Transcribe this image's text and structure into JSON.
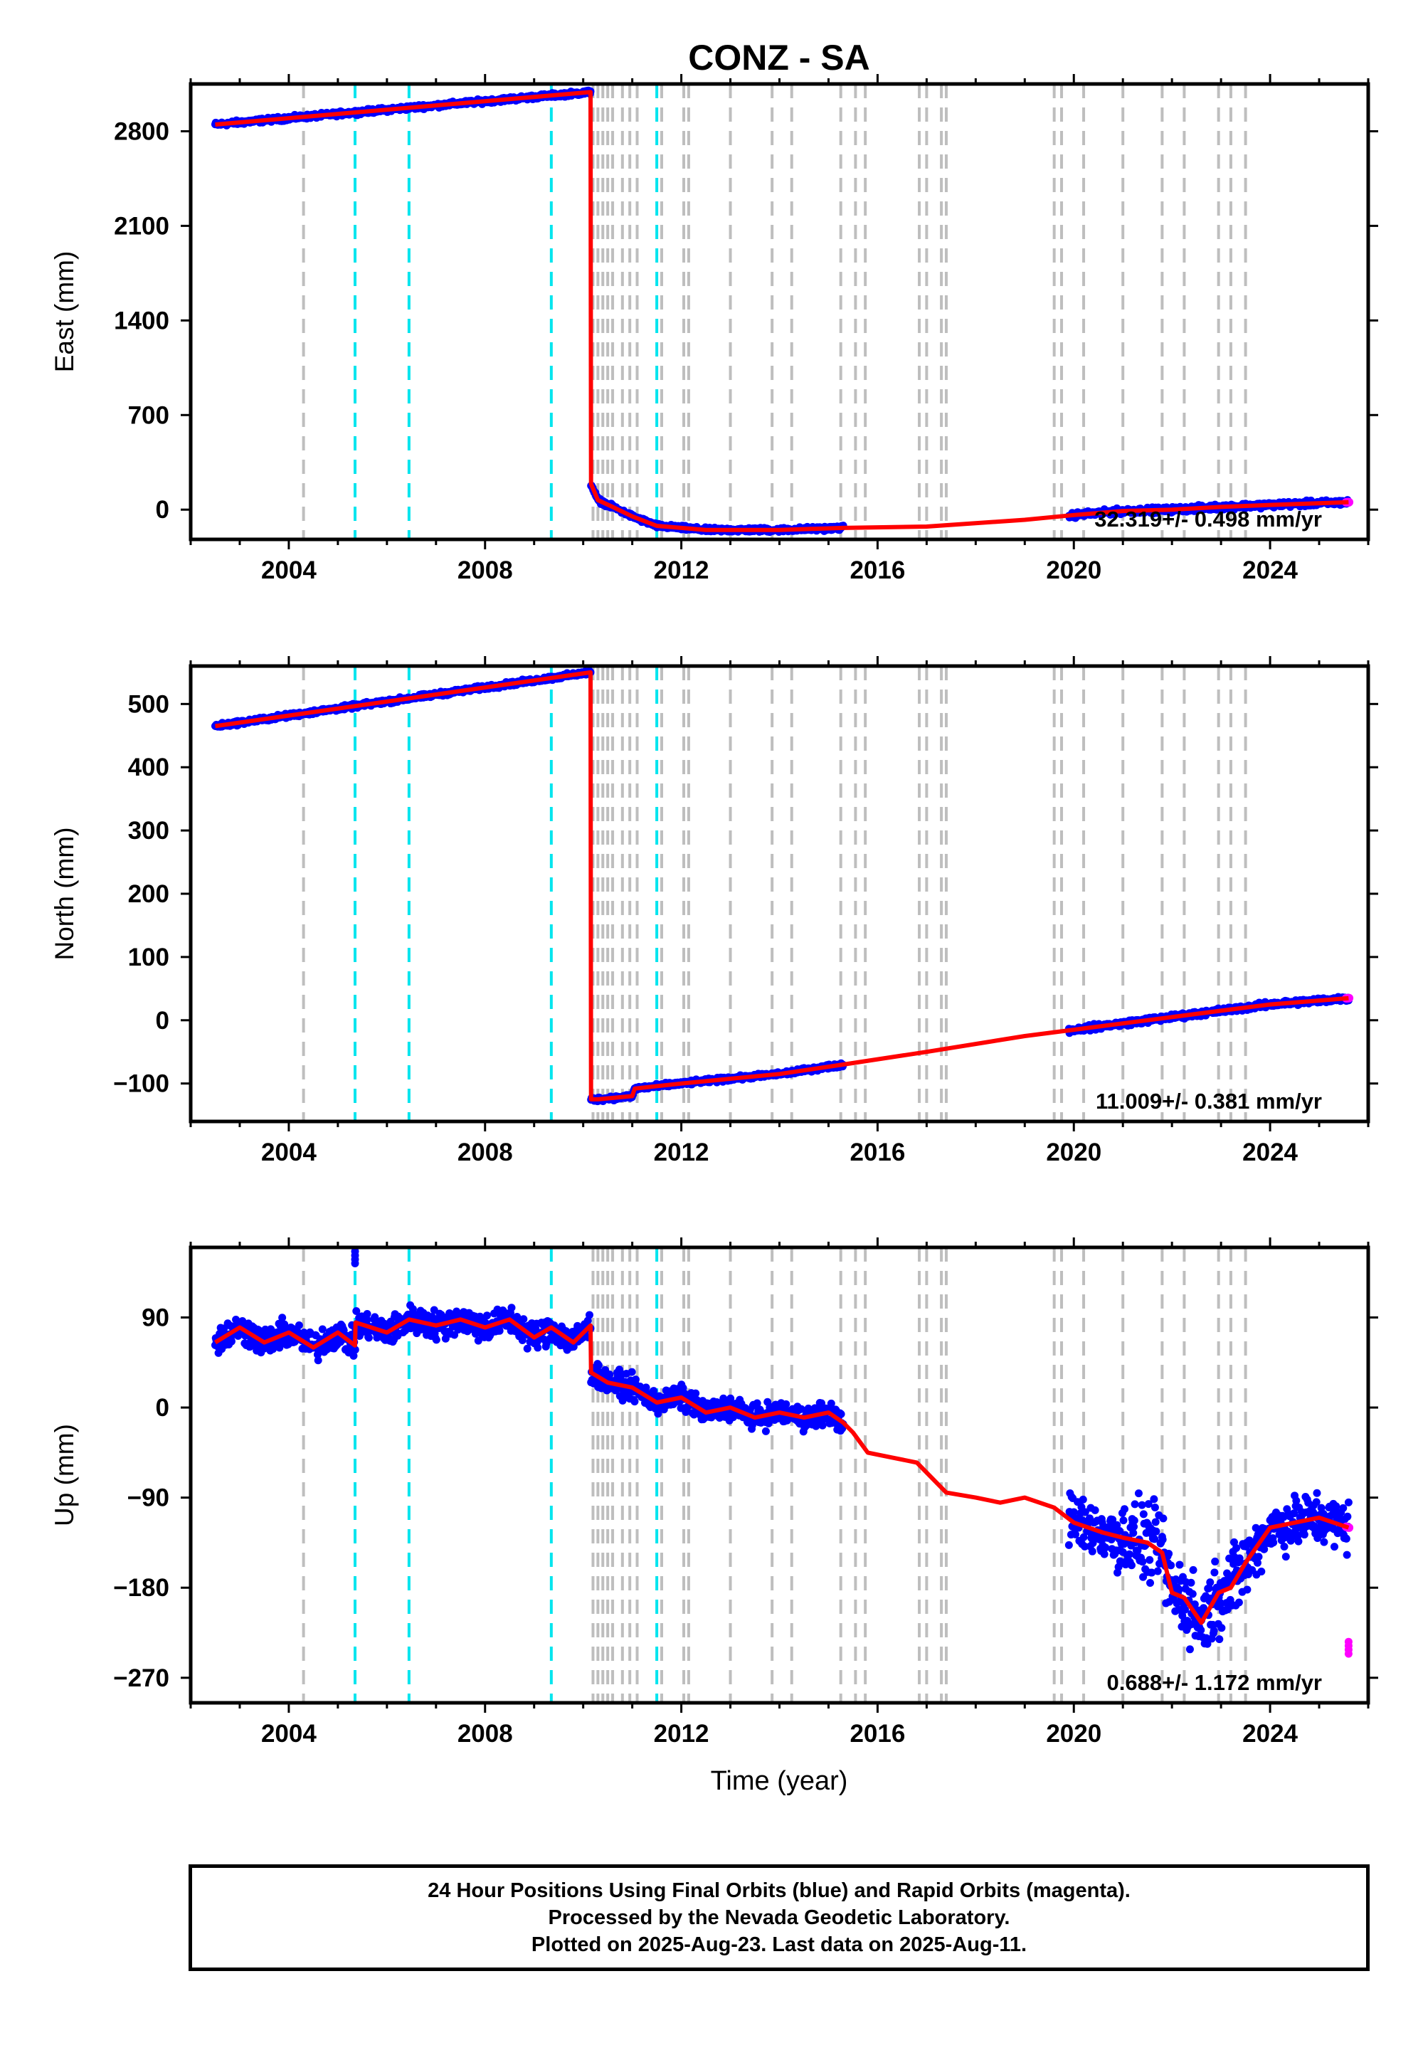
{
  "title": "CONZ - SA",
  "x_axis_label": "Time (year)",
  "footer": {
    "line1": "24 Hour Positions Using Final Orbits (blue) and Rapid Orbits (magenta).",
    "line2": "Processed by the Nevada Geodetic Laboratory.",
    "line3": "Plotted on 2025-Aug-23. Last data on 2025-Aug-11."
  },
  "colors": {
    "final_orbits": "#0000ff",
    "rapid_orbits": "#ff00ff",
    "model": "#ff0000",
    "equipment_change": "#00e5ee",
    "earthquake": "#bebebe"
  },
  "chart_data": [
    {
      "type": "scatter",
      "panel": "east",
      "ylabel": "East (mm)",
      "xlim": [
        2002.0,
        2026.0
      ],
      "ylim": [
        -220,
        3150
      ],
      "yticks": [
        0,
        700,
        1400,
        2100,
        2800
      ],
      "xticks": [
        2004,
        2008,
        2012,
        2016,
        2020,
        2024
      ],
      "grid": false,
      "annotation": "32.319+/- 0.498 mm/yr",
      "model_line": {
        "x": [
          2002.5,
          2010.15,
          2010.16,
          2010.3,
          2010.6,
          2011.0,
          2011.5,
          2012.5,
          2014.0,
          2015.3,
          2017.0,
          2019.0,
          2020.0,
          2021.0,
          2022.0,
          2023.0,
          2024.0,
          2025.6
        ],
        "y": [
          2850,
          3090,
          190,
          70,
          20,
          -50,
          -120,
          -150,
          -150,
          -135,
          -125,
          -75,
          -40,
          -10,
          0,
          20,
          35,
          55
        ]
      },
      "series": [
        {
          "name": "final",
          "segments": [
            [
              2002.5,
              2010.15
            ],
            [
              2010.16,
              2015.3
            ],
            [
              2019.9,
              2025.6
            ]
          ]
        },
        {
          "name": "rapid",
          "segments": [
            [
              2025.55,
              2025.62
            ]
          ]
        }
      ],
      "equipment_changes": [
        2005.35,
        2006.45,
        2009.35,
        2011.5
      ],
      "earthquakes": [
        2004.3,
        2010.2,
        2010.3,
        2010.4,
        2010.5,
        2010.6,
        2010.8,
        2010.95,
        2011.1,
        2011.6,
        2012.05,
        2012.15,
        2013.0,
        2013.85,
        2014.25,
        2015.25,
        2015.55,
        2015.75,
        2016.85,
        2017.0,
        2017.3,
        2017.4,
        2019.6,
        2019.75,
        2020.2,
        2021.0,
        2021.8,
        2022.25,
        2022.95,
        2023.2,
        2023.5
      ]
    },
    {
      "type": "scatter",
      "panel": "north",
      "ylabel": "North (mm)",
      "xlim": [
        2002.0,
        2026.0
      ],
      "ylim": [
        -160,
        560
      ],
      "yticks": [
        -100,
        0,
        100,
        200,
        300,
        400,
        500
      ],
      "xticks": [
        2004,
        2008,
        2012,
        2016,
        2020,
        2024
      ],
      "grid": false,
      "annotation": "11.009+/- 0.381 mm/yr",
      "model_line": {
        "x": [
          2002.5,
          2010.15,
          2010.16,
          2010.3,
          2011.0,
          2011.05,
          2012.0,
          2014.0,
          2015.3,
          2017.0,
          2019.0,
          2020.0,
          2021.0,
          2022.0,
          2023.0,
          2024.0,
          2025.6
        ],
        "y": [
          465,
          550,
          -125,
          -125,
          -120,
          -108,
          -100,
          -85,
          -70,
          -50,
          -25,
          -15,
          -5,
          5,
          15,
          25,
          35
        ]
      },
      "series": [
        {
          "name": "final",
          "segments": [
            [
              2002.5,
              2010.15
            ],
            [
              2010.16,
              2015.3
            ],
            [
              2019.9,
              2025.6
            ]
          ]
        },
        {
          "name": "rapid",
          "segments": [
            [
              2025.55,
              2025.62
            ]
          ]
        }
      ],
      "equipment_changes": [
        2005.35,
        2006.45,
        2009.35,
        2011.5
      ],
      "earthquakes": [
        2004.3,
        2010.2,
        2010.3,
        2010.4,
        2010.5,
        2010.6,
        2010.8,
        2010.95,
        2011.1,
        2011.6,
        2012.05,
        2012.15,
        2013.0,
        2013.85,
        2014.25,
        2015.25,
        2015.55,
        2015.75,
        2016.85,
        2017.0,
        2017.3,
        2017.4,
        2019.6,
        2019.75,
        2020.2,
        2021.0,
        2021.8,
        2022.25,
        2022.95,
        2023.2,
        2023.5
      ]
    },
    {
      "type": "scatter",
      "panel": "up",
      "ylabel": "Up (mm)",
      "xlim": [
        2002.0,
        2026.0
      ],
      "ylim": [
        -295,
        160
      ],
      "yticks": [
        -270,
        -180,
        -90,
        0,
        90
      ],
      "xticks": [
        2004,
        2008,
        2012,
        2016,
        2020,
        2024
      ],
      "grid": false,
      "annotation": "0.688+/- 1.172 mm/yr",
      "model_line": {
        "x": [
          2002.5,
          2003.0,
          2003.5,
          2004.0,
          2004.5,
          2005.0,
          2005.35,
          2005.36,
          2006.0,
          2006.45,
          2007.0,
          2007.5,
          2008.0,
          2008.5,
          2009.0,
          2009.35,
          2009.8,
          2010.15,
          2010.16,
          2010.5,
          2011.0,
          2011.5,
          2012.0,
          2012.5,
          2013.0,
          2013.5,
          2014.0,
          2014.5,
          2015.0,
          2015.3,
          2015.5,
          2015.8,
          2016.3,
          2016.8,
          2017.0,
          2017.4,
          2018.0,
          2018.5,
          2019.0,
          2019.6,
          2020.0,
          2020.3,
          2020.6,
          2021.0,
          2021.5,
          2021.8,
          2022.0,
          2022.25,
          2022.6,
          2022.95,
          2023.2,
          2023.5,
          2024.0,
          2024.5,
          2025.0,
          2025.6
        ],
        "y": [
          65,
          80,
          65,
          75,
          60,
          75,
          62,
          85,
          75,
          88,
          82,
          88,
          80,
          88,
          70,
          80,
          65,
          82,
          35,
          25,
          20,
          5,
          10,
          -5,
          0,
          -10,
          -5,
          -10,
          -5,
          -15,
          -25,
          -45,
          -50,
          -55,
          -65,
          -85,
          -90,
          -95,
          -90,
          -100,
          -115,
          -120,
          -125,
          -130,
          -135,
          -145,
          -185,
          -190,
          -215,
          -185,
          -180,
          -155,
          -120,
          -115,
          -110,
          -120
        ]
      },
      "series": [
        {
          "name": "final",
          "segments": [
            [
              2002.5,
              2010.15
            ],
            [
              2010.16,
              2015.3
            ],
            [
              2019.9,
              2025.6
            ]
          ]
        },
        {
          "name": "rapid",
          "segments": [
            [
              2025.55,
              2025.62
            ]
          ]
        }
      ],
      "outliers": [
        {
          "x": 2005.35,
          "y": 150
        },
        {
          "x": 2025.6,
          "y": -240
        }
      ],
      "equipment_changes": [
        2005.35,
        2006.45,
        2009.35,
        2011.5
      ],
      "earthquakes": [
        2004.3,
        2010.2,
        2010.3,
        2010.4,
        2010.5,
        2010.6,
        2010.8,
        2010.95,
        2011.1,
        2011.6,
        2012.05,
        2012.15,
        2013.0,
        2013.85,
        2014.25,
        2015.25,
        2015.55,
        2015.75,
        2016.85,
        2017.0,
        2017.3,
        2017.4,
        2019.6,
        2019.75,
        2020.2,
        2021.0,
        2021.8,
        2022.25,
        2022.95,
        2023.2,
        2023.5
      ]
    }
  ]
}
